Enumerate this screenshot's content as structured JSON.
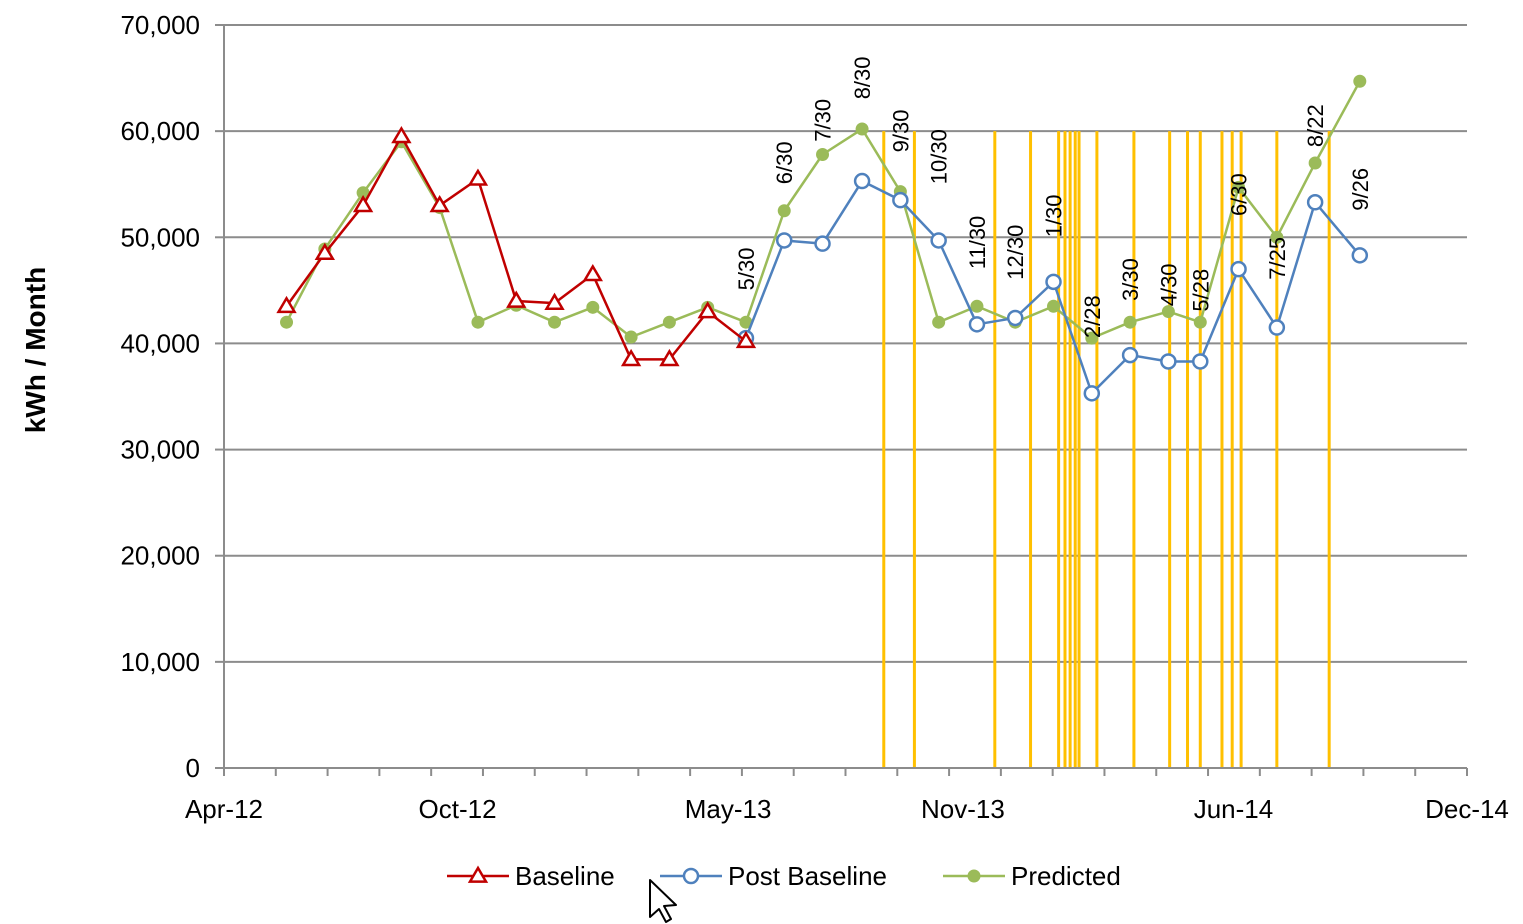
{
  "chart_data": {
    "type": "line",
    "title": "",
    "xlabel": "",
    "ylabel": "kWh / Month",
    "ylim": [
      0,
      70000
    ],
    "y_ticks": [
      0,
      10000,
      20000,
      30000,
      40000,
      50000,
      60000,
      70000
    ],
    "y_tick_labels": [
      "0",
      "10,000",
      "20,000",
      "30,000",
      "40,000",
      "50,000",
      "60,000",
      "70,000"
    ],
    "xlim": [
      "2012-04-01",
      "2014-12-01"
    ],
    "x_ticks": [
      "2012-04-01",
      "2012-10-01",
      "2013-05-01",
      "2013-11-01",
      "2014-06-01",
      "2014-12-01"
    ],
    "x_tick_labels": [
      "Apr-12",
      "Oct-12",
      "May-13",
      "Nov-13",
      "Jun-14",
      "Dec-14"
    ],
    "grid": "horizontal",
    "legend_position": "bottom",
    "series": [
      {
        "name": "Baseline",
        "color": "#c00000",
        "marker": "triangle-open",
        "points": [
          [
            "2012-05-20",
            43500
          ],
          [
            "2012-06-19",
            48500
          ],
          [
            "2012-07-19",
            53000
          ],
          [
            "2012-08-18",
            59500
          ],
          [
            "2012-09-17",
            53000
          ],
          [
            "2012-10-17",
            55500
          ],
          [
            "2012-11-16",
            44000
          ],
          [
            "2012-12-16",
            43800
          ],
          [
            "2013-01-15",
            46500
          ],
          [
            "2013-02-14",
            38500
          ],
          [
            "2013-03-16",
            38500
          ],
          [
            "2013-04-15",
            43000
          ],
          [
            "2013-05-15",
            40200
          ]
        ]
      },
      {
        "name": "Post Baseline",
        "color": "#4f81bd",
        "marker": "circle-open",
        "points": [
          [
            "2013-05-15",
            40500
          ],
          [
            "2013-06-14",
            49700
          ],
          [
            "2013-07-14",
            49400
          ],
          [
            "2013-08-14",
            55300
          ],
          [
            "2013-09-13",
            53500
          ],
          [
            "2013-10-13",
            49700
          ],
          [
            "2013-11-12",
            41800
          ],
          [
            "2013-12-12",
            42400
          ],
          [
            "2014-01-11",
            45800
          ],
          [
            "2014-02-10",
            35300
          ],
          [
            "2014-03-12",
            38900
          ],
          [
            "2014-04-11",
            38300
          ],
          [
            "2014-05-06",
            38300
          ],
          [
            "2014-06-05",
            47000
          ],
          [
            "2014-07-05",
            41500
          ],
          [
            "2014-08-04",
            53300
          ],
          [
            "2014-09-08",
            48300
          ]
        ]
      },
      {
        "name": "Predicted",
        "color": "#9bbb59",
        "marker": "dot",
        "points": [
          [
            "2012-05-20",
            42000
          ],
          [
            "2012-06-19",
            48900
          ],
          [
            "2012-07-19",
            54200
          ],
          [
            "2012-08-18",
            59000
          ],
          [
            "2012-09-17",
            52800
          ],
          [
            "2012-10-17",
            42000
          ],
          [
            "2012-11-16",
            43600
          ],
          [
            "2012-12-16",
            42000
          ],
          [
            "2013-01-15",
            43400
          ],
          [
            "2013-02-14",
            40600
          ],
          [
            "2013-03-16",
            42000
          ],
          [
            "2013-04-15",
            43400
          ],
          [
            "2013-05-15",
            42000
          ],
          [
            "2013-06-14",
            52500
          ],
          [
            "2013-07-14",
            57800
          ],
          [
            "2013-08-14",
            60200
          ],
          [
            "2013-09-13",
            54300
          ],
          [
            "2013-10-13",
            42000
          ],
          [
            "2013-11-12",
            43500
          ],
          [
            "2013-12-12",
            42000
          ],
          [
            "2014-01-11",
            43500
          ],
          [
            "2014-02-10",
            40500
          ],
          [
            "2014-03-12",
            42000
          ],
          [
            "2014-04-11",
            43000
          ],
          [
            "2014-05-06",
            42000
          ],
          [
            "2014-06-05",
            54700
          ],
          [
            "2014-07-05",
            50000
          ],
          [
            "2014-08-04",
            57000
          ],
          [
            "2014-09-08",
            64700
          ]
        ]
      }
    ],
    "vertical_markers": {
      "color": "#ffc000",
      "top_value": 60000,
      "dates": [
        "2013-08-31",
        "2013-09-24",
        "2013-11-26",
        "2013-12-24",
        "2014-01-15",
        "2014-01-20",
        "2014-01-24",
        "2014-01-28",
        "2014-01-31",
        "2014-02-14",
        "2014-03-15",
        "2014-04-12",
        "2014-04-26",
        "2014-05-06",
        "2014-05-23",
        "2014-05-31",
        "2014-06-07",
        "2014-07-05",
        "2014-08-15"
      ]
    },
    "point_labels": [
      {
        "text": "5/30",
        "x": "2013-05-15",
        "y": 45000
      },
      {
        "text": "6/30",
        "x": "2013-06-14",
        "y": 55000
      },
      {
        "text": "7/30",
        "x": "2013-07-14",
        "y": 59000
      },
      {
        "text": "8/30",
        "x": "2013-08-14",
        "y": 63000
      },
      {
        "text": "9/30",
        "x": "2013-09-13",
        "y": 58000
      },
      {
        "text": "10/30",
        "x": "2013-10-13",
        "y": 55000
      },
      {
        "text": "11/30",
        "x": "2013-11-12",
        "y": 47000
      },
      {
        "text": "12/30",
        "x": "2013-12-12",
        "y": 46000
      },
      {
        "text": "1/30",
        "x": "2014-01-11",
        "y": 50000
      },
      {
        "text": "2/28",
        "x": "2014-02-10",
        "y": 40500
      },
      {
        "text": "3/30",
        "x": "2014-03-12",
        "y": 44000
      },
      {
        "text": "4/30",
        "x": "2014-04-11",
        "y": 43500
      },
      {
        "text": "5/28",
        "x": "2014-05-06",
        "y": 43000
      },
      {
        "text": "6/30",
        "x": "2014-06-05",
        "y": 52000
      },
      {
        "text": "7/25",
        "x": "2014-07-05",
        "y": 46000
      },
      {
        "text": "8/22",
        "x": "2014-08-04",
        "y": 58500
      },
      {
        "text": "9/26",
        "x": "2014-09-08",
        "y": 52500
      }
    ]
  }
}
